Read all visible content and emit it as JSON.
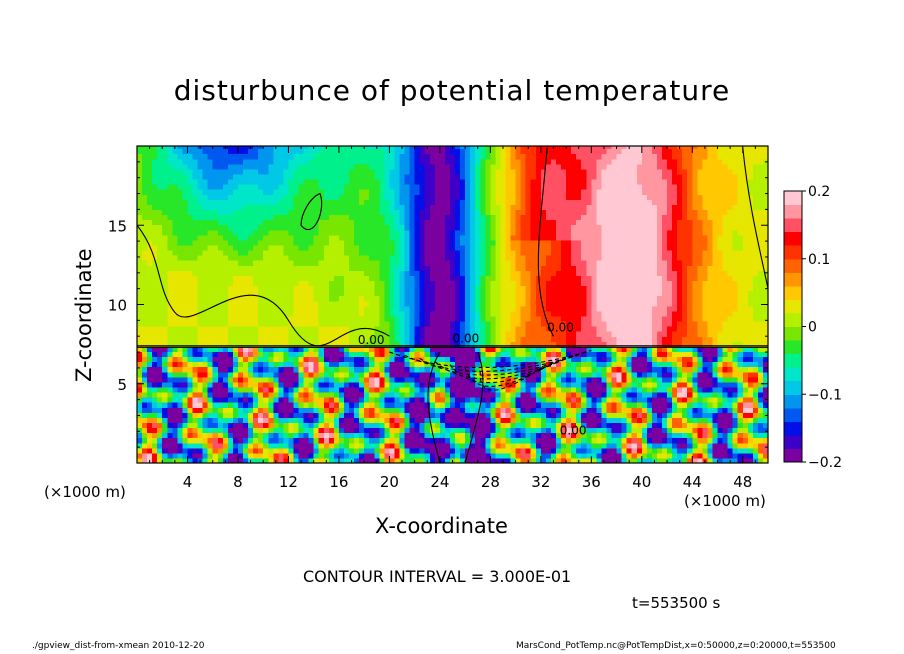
{
  "chart_data": {
    "type": "heatmap",
    "title": "disturbunce of potential temperature",
    "xlabel": "X-coordinate",
    "ylabel": "Z-coordinate",
    "x_unit_label": "(×1000 m)",
    "xlim": [
      0,
      50
    ],
    "ylim": [
      0,
      20
    ],
    "x_ticks": [
      4,
      8,
      12,
      16,
      20,
      24,
      28,
      32,
      36,
      40,
      44,
      48
    ],
    "y_ticks": [
      5,
      10,
      15
    ],
    "colorbar": {
      "range": [
        -0.2,
        0.2
      ],
      "ticks": [
        {
          "value": 0.2,
          "label": "0.2"
        },
        {
          "value": 0.1,
          "label": "0.1"
        },
        {
          "value": 0,
          "label": "0"
        },
        {
          "value": -0.1,
          "label": "−0.1"
        },
        {
          "value": -0.2,
          "label": "−0.2"
        }
      ],
      "colors": [
        "#7a00a0",
        "#3c00c8",
        "#0010e6",
        "#0058f0",
        "#0096f0",
        "#00c8e6",
        "#00e6c8",
        "#00f08c",
        "#28e628",
        "#78e600",
        "#b4f000",
        "#e6e600",
        "#ffc800",
        "#ff9600",
        "#ff6400",
        "#ff3200",
        "#ff0000",
        "#ff5064",
        "#ff96a0",
        "#ffc8d2"
      ]
    },
    "field_features": [
      {
        "label": "positive anomaly column",
        "x_center": 39,
        "value": 0.2
      },
      {
        "label": "negative anomaly column",
        "x_center": 24,
        "value": -0.2
      },
      {
        "label": "upper-left weak negative",
        "x_center": 7,
        "value": -0.12
      },
      {
        "label": "inversion layer",
        "z": 7.3
      }
    ],
    "contour_labels": [
      "0.00",
      "0.00",
      "0.00",
      "0.00"
    ]
  },
  "annotations": {
    "contour_interval": "CONTOUR INTERVAL = 3.000E-01",
    "time": "t=553500 s"
  },
  "footer": {
    "left": "./gpview_dist-from-xmean  2010-12-20",
    "right": "MarsCond_PotTemp.nc@PotTempDist,x=0:50000,z=0:20000,t=553500"
  }
}
